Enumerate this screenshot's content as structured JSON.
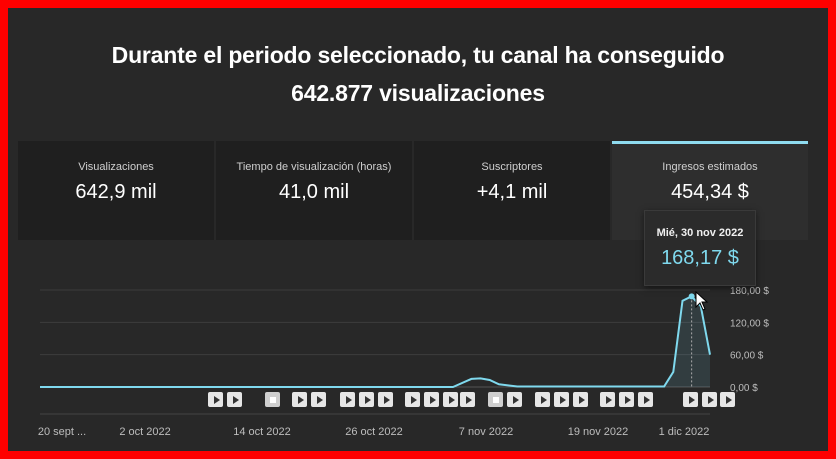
{
  "headline": {
    "line1": "Durante el periodo seleccionado, tu canal ha conseguido",
    "line2": "642.877 visualizaciones"
  },
  "cards": [
    {
      "label": "Visualizaciones",
      "value": "642,9 mil",
      "active": false
    },
    {
      "label": "Tiempo de visualización (horas)",
      "value": "41,0 mil",
      "active": false
    },
    {
      "label": "Suscriptores",
      "value": "+4,1 mil",
      "active": false
    },
    {
      "label": "Ingresos estimados",
      "value": "454,34 $",
      "active": true
    }
  ],
  "tooltip": {
    "date": "Mié, 30 nov 2022",
    "amount": "168,17 $"
  },
  "colors": {
    "accent": "#7fd9ee",
    "frame": "#ff0000",
    "background": "#282828"
  },
  "chart_data": {
    "type": "line",
    "title": "",
    "ylabel": "",
    "ylim": [
      0,
      180
    ],
    "yticks": [
      "180,00 $",
      "120,00 $",
      "60,00 $",
      "0,00 $"
    ],
    "ytick_values": [
      180,
      120,
      60,
      0
    ],
    "xticks": [
      "20 sept ...",
      "2 oct 2022",
      "14 oct 2022",
      "26 oct 2022",
      "7 nov 2022",
      "19 nov 2022",
      "1 dic 2022"
    ],
    "x_start": "2022-09-20",
    "x_end": "2022-12-02",
    "series": [
      {
        "points": [
          {
            "x": "2022-09-20",
            "y": 0
          },
          {
            "x": "2022-11-04",
            "y": 0
          },
          {
            "x": "2022-11-06",
            "y": 15
          },
          {
            "x": "2022-11-07",
            "y": 16
          },
          {
            "x": "2022-11-08",
            "y": 13
          },
          {
            "x": "2022-11-09",
            "y": 5
          },
          {
            "x": "2022-11-11",
            "y": 1
          },
          {
            "x": "2022-11-27",
            "y": 1
          },
          {
            "x": "2022-11-28",
            "y": 28
          },
          {
            "x": "2022-11-29",
            "y": 160
          },
          {
            "x": "2022-11-30",
            "y": 168.17
          },
          {
            "x": "2022-12-01",
            "y": 150
          },
          {
            "x": "2022-12-02",
            "y": 60
          }
        ]
      }
    ]
  },
  "annotation_markers": [
    {
      "kind": "play"
    },
    {
      "kind": "play"
    },
    {
      "kind": "square"
    },
    {
      "kind": "play"
    },
    {
      "kind": "play"
    },
    {
      "kind": "play"
    },
    {
      "kind": "play"
    },
    {
      "kind": "play"
    },
    {
      "kind": "play"
    },
    {
      "kind": "play"
    },
    {
      "kind": "play"
    },
    {
      "kind": "play"
    },
    {
      "kind": "square"
    },
    {
      "kind": "play"
    },
    {
      "kind": "play"
    },
    {
      "kind": "play"
    },
    {
      "kind": "play"
    },
    {
      "kind": "play"
    },
    {
      "kind": "play"
    },
    {
      "kind": "play"
    },
    {
      "kind": "play"
    },
    {
      "kind": "play"
    },
    {
      "kind": "play"
    }
  ]
}
